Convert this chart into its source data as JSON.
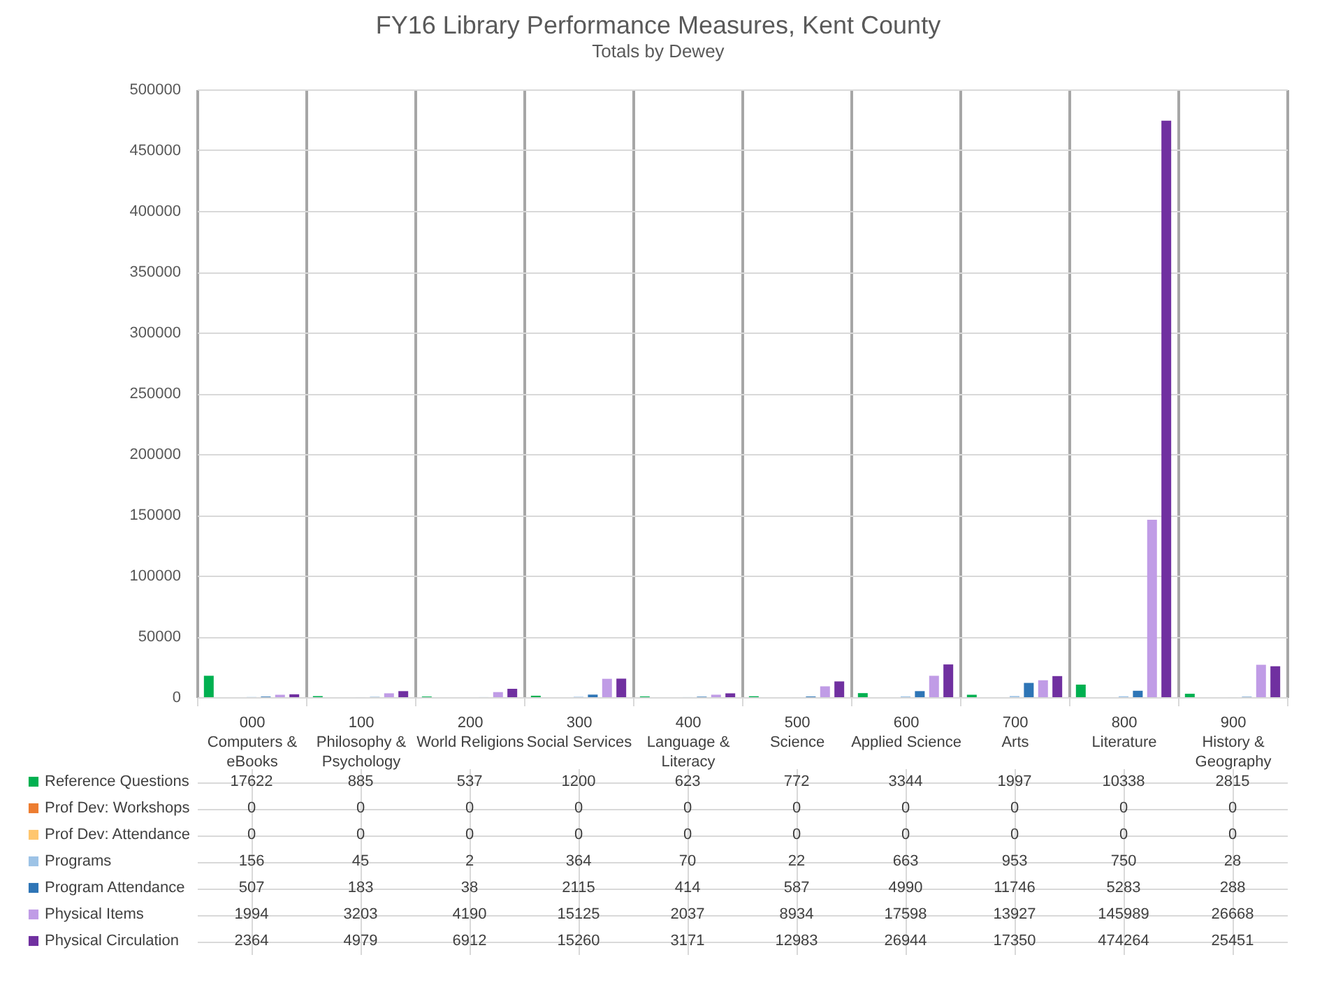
{
  "chart_data": {
    "type": "bar",
    "title": "FY16 Library Performance Measures, Kent County",
    "subtitle": "Totals by Dewey",
    "categories": [
      "000 Computers & eBooks",
      "100 Philosophy & Psychology",
      "200 World Religions",
      "300 Social Services",
      "400 Language & Literacy",
      "500 Science",
      "600 Applied Science",
      "700 Arts",
      "800 Literature",
      "900 History & Geography"
    ],
    "series": [
      {
        "name": "Reference Questions",
        "color": "#00b050",
        "values": [
          17622,
          885,
          537,
          1200,
          623,
          772,
          3344,
          1997,
          10338,
          2815
        ]
      },
      {
        "name": "Prof Dev: Workshops",
        "color": "#ed7d31",
        "values": [
          0,
          0,
          0,
          0,
          0,
          0,
          0,
          0,
          0,
          0
        ]
      },
      {
        "name": "Prof Dev: Attendance",
        "color": "#ffc66e",
        "values": [
          0,
          0,
          0,
          0,
          0,
          0,
          0,
          0,
          0,
          0
        ]
      },
      {
        "name": "Programs",
        "color": "#9dc3e6",
        "values": [
          156,
          45,
          2,
          364,
          70,
          22,
          663,
          953,
          750,
          28
        ]
      },
      {
        "name": "Program Attendance",
        "color": "#2e75b6",
        "values": [
          507,
          183,
          38,
          2115,
          414,
          587,
          4990,
          11746,
          5283,
          288
        ]
      },
      {
        "name": "Physical Items",
        "color": "#c09ce6",
        "values": [
          1994,
          3203,
          4190,
          15125,
          2037,
          8934,
          17598,
          13927,
          145989,
          26668
        ]
      },
      {
        "name": "Physical Circulation",
        "color": "#7030a0",
        "values": [
          2364,
          4979,
          6912,
          15260,
          3171,
          12983,
          26944,
          17350,
          474264,
          25451
        ]
      }
    ],
    "ylim": [
      0,
      500000
    ],
    "yticks": [
      0,
      50000,
      100000,
      150000,
      200000,
      250000,
      300000,
      350000,
      400000,
      450000,
      500000
    ],
    "grid": true,
    "legend": "bottom",
    "data_labels": true
  }
}
